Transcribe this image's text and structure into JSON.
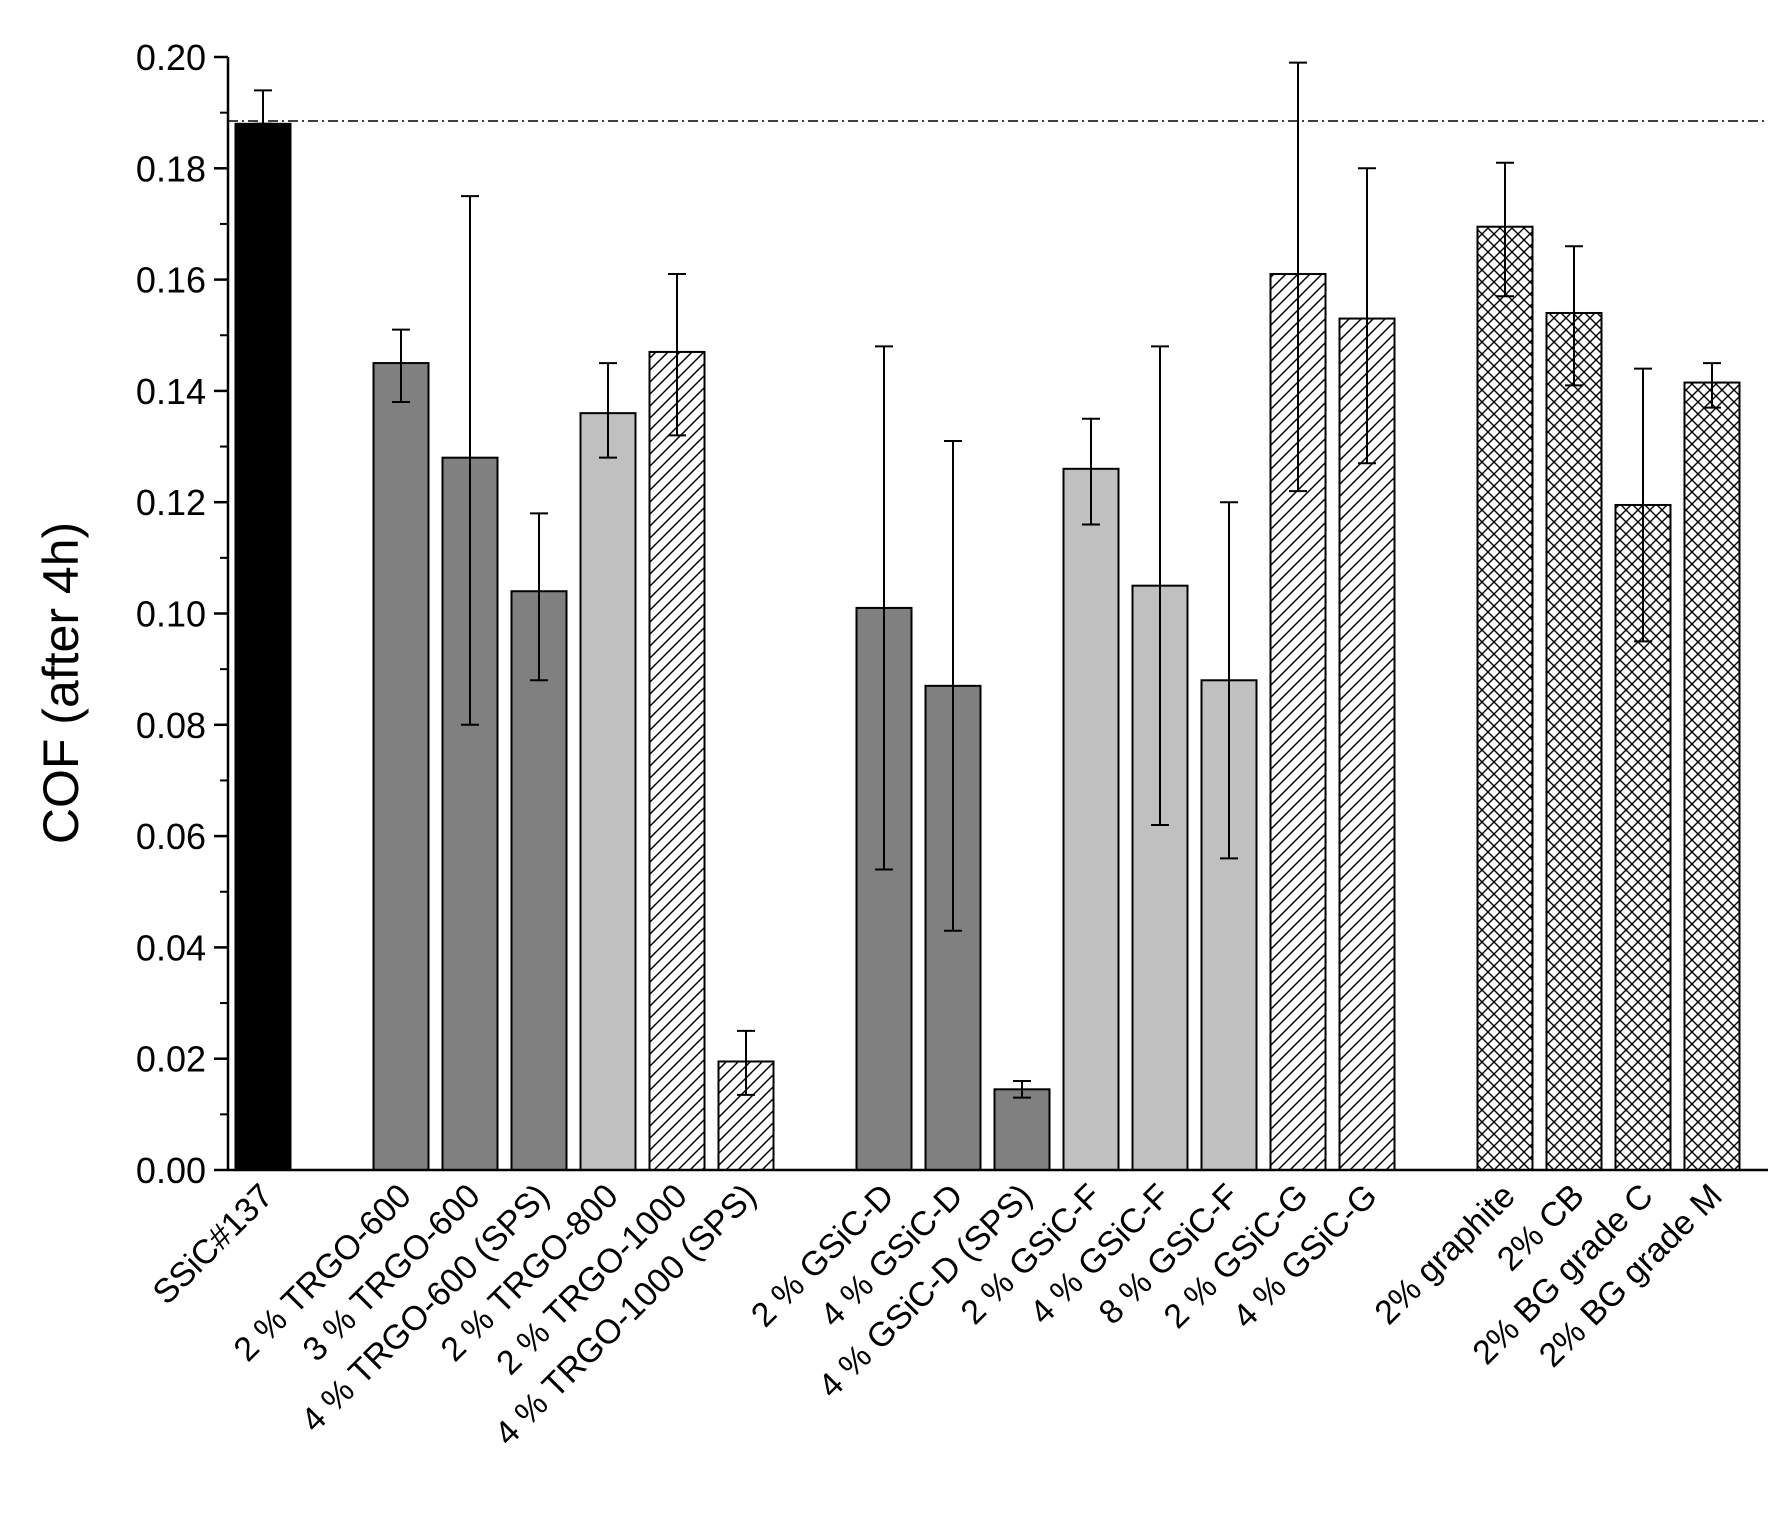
{
  "chart_data": {
    "type": "bar",
    "title": "",
    "xlabel": "",
    "ylabel": "COF (after 4h)",
    "ylim": [
      0,
      0.2
    ],
    "yticks": [
      "0.00",
      "0.02",
      "0.04",
      "0.06",
      "0.08",
      "0.10",
      "0.12",
      "0.14",
      "0.16",
      "0.18",
      "0.20"
    ],
    "reference_line": {
      "value": 0.1885,
      "style": "dash-dot",
      "description": "SSiC#137 reference level"
    },
    "colors": {
      "black": "#000000",
      "dark": "#808080",
      "light": "#c0c0c0",
      "white": "#ffffff"
    },
    "bars": [
      {
        "label": "SSiC#137",
        "value": 0.188,
        "err_low": 0.188,
        "err_high": 0.194,
        "fill": "black"
      },
      {
        "gap": true
      },
      {
        "label": "2 % TRGO-600",
        "value": 0.145,
        "err_low": 0.138,
        "err_high": 0.151,
        "fill": "dark"
      },
      {
        "label": "3 % TRGO-600",
        "value": 0.128,
        "err_low": 0.08,
        "err_high": 0.175,
        "fill": "dark"
      },
      {
        "label": "4 % TRGO-600 (SPS)",
        "value": 0.104,
        "err_low": 0.088,
        "err_high": 0.118,
        "fill": "dark"
      },
      {
        "label": "2 % TRGO-800",
        "value": 0.136,
        "err_low": 0.128,
        "err_high": 0.145,
        "fill": "light"
      },
      {
        "label": "2 % TRGO-1000",
        "value": 0.147,
        "err_low": 0.132,
        "err_high": 0.161,
        "fill": "hatch"
      },
      {
        "label": "4 % TRGO-1000 (SPS)",
        "value": 0.0195,
        "err_low": 0.0135,
        "err_high": 0.025,
        "fill": "hatch"
      },
      {
        "gap": true
      },
      {
        "label": "2 % GSiC-D",
        "value": 0.101,
        "err_low": 0.054,
        "err_high": 0.148,
        "fill": "dark"
      },
      {
        "label": "4 % GSiC-D",
        "value": 0.087,
        "err_low": 0.043,
        "err_high": 0.131,
        "fill": "dark"
      },
      {
        "label": "4 % GSiC-D (SPS)",
        "value": 0.0145,
        "err_low": 0.013,
        "err_high": 0.016,
        "fill": "dark"
      },
      {
        "label": "2 % GSiC-F",
        "value": 0.126,
        "err_low": 0.116,
        "err_high": 0.135,
        "fill": "light"
      },
      {
        "label": "4 % GSiC-F",
        "value": 0.105,
        "err_low": 0.062,
        "err_high": 0.148,
        "fill": "light"
      },
      {
        "label": "8 % GSiC-F",
        "value": 0.088,
        "err_low": 0.056,
        "err_high": 0.12,
        "fill": "light"
      },
      {
        "label": "2 % GSiC-G",
        "value": 0.161,
        "err_low": 0.122,
        "err_high": 0.199,
        "fill": "hatch"
      },
      {
        "label": "4 % GSiC-G",
        "value": 0.153,
        "err_low": 0.127,
        "err_high": 0.18,
        "fill": "hatch"
      },
      {
        "gap": true
      },
      {
        "label": "2% graphite",
        "value": 0.1695,
        "err_low": 0.157,
        "err_high": 0.181,
        "fill": "cross"
      },
      {
        "label": "2% CB",
        "value": 0.154,
        "err_low": 0.141,
        "err_high": 0.166,
        "fill": "cross"
      },
      {
        "label": "2% BG grade C",
        "value": 0.1195,
        "err_low": 0.095,
        "err_high": 0.144,
        "fill": "cross"
      },
      {
        "label": "2% BG grade M",
        "value": 0.1415,
        "err_low": 0.137,
        "err_high": 0.145,
        "fill": "cross"
      }
    ]
  }
}
